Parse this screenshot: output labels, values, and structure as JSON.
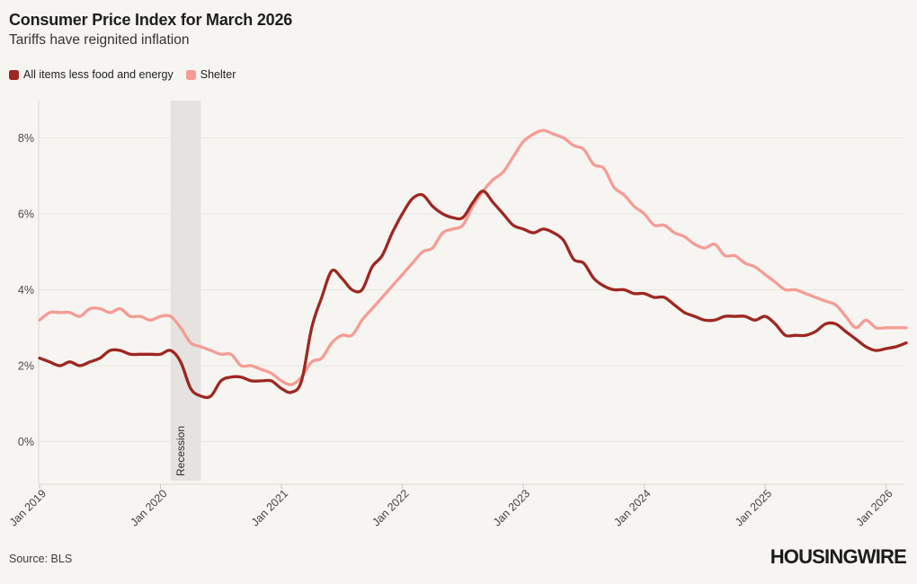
{
  "page": {
    "background": "#f7f5f1"
  },
  "header": {
    "title": "Consumer Price Index for March 2026",
    "subtitle": "Tariffs have reignited inflation"
  },
  "legend": [
    {
      "label": "All items less food and energy",
      "color": "#9e2722"
    },
    {
      "label": "Shelter",
      "color": "#f69c95"
    }
  ],
  "footer": {
    "source": "Source: BLS",
    "brand": "HOUSINGWIRE"
  },
  "chart_data": {
    "type": "line",
    "title": "Consumer Price Index for March 2026",
    "subtitle": "Tariffs have reignited inflation",
    "x_start_label": "Jan 2019",
    "x_end_label": "Mar 2026",
    "x_tick_labels": [
      "Jan 2019",
      "Jan 2020",
      "Jan 2021",
      "Jan 2022",
      "Jan 2023",
      "Jan 2024",
      "Jan 2025",
      "Jan 2026"
    ],
    "x_tick_month_indices": [
      0,
      12,
      24,
      36,
      48,
      60,
      72,
      84
    ],
    "y_ticks": [
      0,
      2,
      4,
      6,
      8
    ],
    "y_tick_suffix": "%",
    "ylim": [
      -1,
      9
    ],
    "grid": "horizontal",
    "legend_position": "top-left",
    "recession_band": {
      "label": "Recession",
      "start": "Feb 2020",
      "end": "Apr 2020",
      "start_month_index": 13,
      "end_month_index": 16,
      "color": "#e4e3df"
    },
    "series": [
      {
        "name": "All items less food and energy",
        "color": "#9e2722",
        "stroke_width": 3.3,
        "values": [
          2.2,
          2.1,
          2.0,
          2.1,
          2.0,
          2.1,
          2.2,
          2.4,
          2.4,
          2.3,
          2.3,
          2.3,
          2.3,
          2.4,
          2.1,
          1.4,
          1.2,
          1.2,
          1.6,
          1.7,
          1.7,
          1.6,
          1.6,
          1.6,
          1.4,
          1.3,
          1.6,
          3.0,
          3.8,
          4.5,
          4.3,
          4.0,
          4.0,
          4.6,
          4.9,
          5.5,
          6.0,
          6.4,
          6.5,
          6.2,
          6.0,
          5.9,
          5.9,
          6.3,
          6.6,
          6.3,
          6.0,
          5.7,
          5.6,
          5.5,
          5.6,
          5.5,
          5.3,
          4.8,
          4.7,
          4.3,
          4.1,
          4.0,
          4.0,
          3.9,
          3.9,
          3.8,
          3.8,
          3.6,
          3.4,
          3.3,
          3.2,
          3.2,
          3.3,
          3.3,
          3.3,
          3.2,
          3.3,
          3.1,
          2.8,
          2.8,
          2.8,
          2.9,
          3.1,
          3.1,
          2.9,
          2.7,
          2.5,
          2.4,
          2.45,
          2.5,
          2.6
        ]
      },
      {
        "name": "Shelter",
        "color": "#f69c95",
        "stroke_width": 3.3,
        "values": [
          3.2,
          3.4,
          3.4,
          3.4,
          3.3,
          3.5,
          3.5,
          3.4,
          3.5,
          3.3,
          3.3,
          3.2,
          3.3,
          3.3,
          3.0,
          2.6,
          2.5,
          2.4,
          2.3,
          2.3,
          2.0,
          2.0,
          1.9,
          1.8,
          1.6,
          1.5,
          1.7,
          2.1,
          2.2,
          2.6,
          2.8,
          2.8,
          3.2,
          3.5,
          3.8,
          4.1,
          4.4,
          4.7,
          5.0,
          5.1,
          5.5,
          5.6,
          5.7,
          6.2,
          6.6,
          6.9,
          7.1,
          7.5,
          7.9,
          8.1,
          8.2,
          8.1,
          8.0,
          7.8,
          7.7,
          7.3,
          7.2,
          6.7,
          6.5,
          6.2,
          6.0,
          5.7,
          5.7,
          5.5,
          5.4,
          5.2,
          5.1,
          5.2,
          4.9,
          4.9,
          4.7,
          4.6,
          4.4,
          4.2,
          4.0,
          4.0,
          3.9,
          3.8,
          3.7,
          3.6,
          3.3,
          3.0,
          3.2,
          3.0,
          3.0,
          3.0,
          3.0
        ]
      }
    ]
  }
}
